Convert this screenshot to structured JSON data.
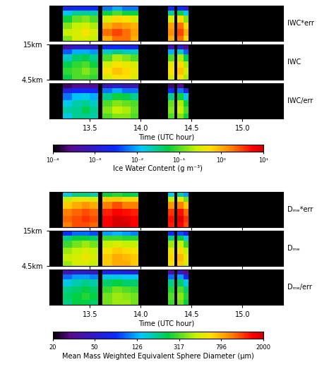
{
  "chart_data": [
    {
      "type": "heatmap",
      "xlabel": "Time (UTC hour)",
      "x_edges": [
        13.1,
        13.23,
        13.32,
        13.42,
        13.5,
        13.58,
        13.62,
        13.72,
        13.82,
        13.9,
        13.98,
        14.27,
        14.33,
        14.36,
        14.42,
        14.47,
        15.4
      ],
      "y_edges": [
        4.5,
        6,
        8,
        10,
        12,
        13.5,
        15
      ],
      "xlim": [
        13.1,
        15.4
      ],
      "xticks": [
        13.5,
        14.0,
        14.5,
        15.0
      ],
      "ylim": [
        4.5,
        15
      ],
      "yticks": [
        {
          "value": 15,
          "label": "15km"
        },
        {
          "value": 4.5,
          "label": "4.5km"
        }
      ],
      "colorbar": {
        "label": "Ice Water Content (g m⁻³)",
        "log": true,
        "range": [
          0.0001,
          10
        ],
        "ticks": [
          {
            "value": 0.0001,
            "label": "10⁻⁴"
          },
          {
            "value": 0.001,
            "label": "10⁻³"
          },
          {
            "value": 0.01,
            "label": "10⁻²"
          },
          {
            "value": 0.1,
            "label": "10⁻¹"
          },
          {
            "value": 1,
            "label": "10⁰"
          },
          {
            "value": 10,
            "label": "10¹"
          }
        ]
      },
      "panels": [
        {
          "title": "IWC*err",
          "tick_labels": false,
          "cells": [
            [
              null,
              0.15,
              0.3,
              0.3,
              0.25,
              null,
              1,
              2,
              2,
              1,
              null,
              1,
              null,
              2,
              0.6,
              null
            ],
            [
              null,
              0.25,
              0.3,
              0.5,
              0.3,
              null,
              2,
              3,
              2,
              1.2,
              null,
              1.5,
              null,
              3,
              1,
              null
            ],
            [
              null,
              0.15,
              0.25,
              0.3,
              0.2,
              null,
              1,
              1.5,
              1.2,
              1,
              null,
              1.2,
              null,
              2,
              0.6,
              null
            ],
            [
              null,
              0.06,
              0.12,
              0.15,
              0.1,
              null,
              0.3,
              0.6,
              0.5,
              0.3,
              null,
              0.3,
              null,
              0.6,
              0.15,
              null
            ],
            [
              null,
              0.015,
              0.03,
              0.03,
              0.025,
              null,
              0.06,
              0.1,
              0.06,
              0.06,
              null,
              0.03,
              null,
              0.06,
              0.015,
              null
            ],
            [
              null,
              0.002,
              0.003,
              0.003,
              0.003,
              null,
              0.006,
              0.01,
              0.006,
              0.006,
              null,
              0.002,
              null,
              0.003,
              0.001,
              null
            ]
          ]
        },
        {
          "title": "IWC",
          "tick_labels": "y",
          "cells": [
            [
              null,
              0.05,
              0.1,
              0.1,
              0.08,
              null,
              0.3,
              0.5,
              0.5,
              0.3,
              null,
              0.3,
              null,
              0.5,
              0.2,
              null
            ],
            [
              null,
              0.08,
              0.1,
              0.15,
              0.1,
              null,
              0.5,
              0.8,
              0.6,
              0.4,
              null,
              0.5,
              null,
              0.8,
              0.3,
              null
            ],
            [
              null,
              0.05,
              0.08,
              0.1,
              0.06,
              null,
              0.3,
              0.5,
              0.4,
              0.3,
              null,
              0.4,
              null,
              0.6,
              0.2,
              null
            ],
            [
              null,
              0.02,
              0.04,
              0.05,
              0.03,
              null,
              0.1,
              0.2,
              0.15,
              0.1,
              null,
              0.1,
              null,
              0.2,
              0.05,
              null
            ],
            [
              null,
              0.005,
              0.01,
              0.01,
              0.008,
              null,
              0.02,
              0.03,
              0.02,
              0.02,
              null,
              0.01,
              null,
              0.02,
              0.005,
              null
            ],
            [
              null,
              0.0005,
              0.001,
              0.001,
              0.001,
              null,
              0.002,
              0.003,
              0.002,
              0.002,
              null,
              0.0005,
              null,
              0.001,
              0.0003,
              null
            ]
          ]
        },
        {
          "title": "IWC/err",
          "tick_labels": "x",
          "cells": [
            [
              null,
              0.015,
              0.03,
              0.03,
              0.025,
              null,
              0.1,
              0.15,
              0.15,
              0.1,
              null,
              0.1,
              null,
              0.15,
              0.06,
              null
            ],
            [
              null,
              0.025,
              0.03,
              0.05,
              0.03,
              null,
              0.15,
              0.25,
              0.2,
              0.12,
              null,
              0.15,
              null,
              0.25,
              0.1,
              null
            ],
            [
              null,
              0.015,
              0.025,
              0.03,
              0.02,
              null,
              0.1,
              0.15,
              0.12,
              0.1,
              null,
              0.12,
              null,
              0.2,
              0.06,
              null
            ],
            [
              null,
              0.006,
              0.012,
              0.015,
              0.01,
              null,
              0.03,
              0.06,
              0.05,
              0.03,
              null,
              0.03,
              null,
              0.06,
              0.015,
              null
            ],
            [
              null,
              0.0015,
              0.003,
              0.003,
              0.0025,
              null,
              0.006,
              0.01,
              0.006,
              0.006,
              null,
              0.003,
              null,
              0.006,
              0.0015,
              null
            ],
            [
              null,
              0.0002,
              0.0003,
              0.0003,
              0.0003,
              null,
              0.0006,
              0.001,
              0.0006,
              0.0006,
              null,
              0.0002,
              null,
              0.0003,
              0.0001,
              null
            ]
          ]
        }
      ]
    },
    {
      "type": "heatmap",
      "xlabel": "Time (UTC hour)",
      "x_edges": [
        13.1,
        13.23,
        13.32,
        13.42,
        13.5,
        13.58,
        13.62,
        13.72,
        13.82,
        13.9,
        13.98,
        14.27,
        14.33,
        14.36,
        14.42,
        14.47,
        15.4
      ],
      "y_edges": [
        4.5,
        6,
        8,
        10,
        12,
        13.5,
        15
      ],
      "xlim": [
        13.1,
        15.4
      ],
      "xticks": [
        13.5,
        14.0,
        14.5,
        15.0
      ],
      "ylim": [
        4.5,
        15
      ],
      "yticks": [
        {
          "value": 15,
          "label": "15km"
        },
        {
          "value": 4.5,
          "label": "4.5km"
        }
      ],
      "colorbar": {
        "label": "Mean Mass Weighted Equivalent Sphere Diameter (µm)",
        "log": true,
        "range": [
          20,
          2000
        ],
        "ticks": [
          20,
          50,
          126,
          317,
          796,
          2000
        ]
      },
      "panels": [
        {
          "title": "Dₘₑ*err",
          "tick_labels": false,
          "cells": [
            [
              null,
              1000,
              1200,
              1200,
              1100,
              null,
              1600,
              1900,
              1900,
              1600,
              null,
              1400,
              null,
              1600,
              1200,
              null
            ],
            [
              null,
              1100,
              1200,
              1300,
              1200,
              null,
              1600,
              1900,
              1800,
              1600,
              null,
              1500,
              null,
              1800,
              1300,
              null
            ],
            [
              null,
              1000,
              1100,
              1200,
              1100,
              null,
              1400,
              1600,
              1500,
              1400,
              null,
              1300,
              null,
              1500,
              1100,
              null
            ],
            [
              null,
              700,
              800,
              900,
              800,
              null,
              1000,
              1200,
              1000,
              1000,
              null,
              900,
              null,
              1000,
              700,
              null
            ],
            [
              null,
              450,
              550,
              550,
              500,
              null,
              700,
              700,
              650,
              650,
              null,
              450,
              null,
              550,
              350,
              null
            ],
            [
              null,
              150,
              200,
              200,
              180,
              null,
              250,
              280,
              250,
              230,
              null,
              150,
              null,
              180,
              120,
              null
            ]
          ]
        },
        {
          "title": "Dₘₑ",
          "tick_labels": "y",
          "cells": [
            [
              null,
              400,
              500,
              500,
              450,
              null,
              700,
              800,
              800,
              700,
              null,
              600,
              null,
              700,
              500,
              null
            ],
            [
              null,
              450,
              500,
              550,
              500,
              null,
              700,
              800,
              750,
              700,
              null,
              650,
              null,
              750,
              550,
              null
            ],
            [
              null,
              400,
              450,
              500,
              450,
              null,
              600,
              700,
              650,
              600,
              null,
              550,
              null,
              650,
              450,
              null
            ],
            [
              null,
              300,
              350,
              400,
              350,
              null,
              450,
              500,
              450,
              450,
              null,
              400,
              null,
              450,
              300,
              null
            ],
            [
              null,
              200,
              250,
              250,
              220,
              null,
              300,
              300,
              280,
              280,
              null,
              200,
              null,
              250,
              150,
              null
            ],
            [
              null,
              80,
              100,
              100,
              90,
              null,
              120,
              130,
              120,
              110,
              null,
              70,
              null,
              90,
              60,
              null
            ]
          ]
        },
        {
          "title": "Dₘₑ/err",
          "tick_labels": "x",
          "cells": [
            [
              null,
              200,
              250,
              250,
              220,
              null,
              350,
              400,
              400,
              350,
              null,
              300,
              null,
              350,
              250,
              null
            ],
            [
              null,
              220,
              250,
              280,
              250,
              null,
              350,
              400,
              380,
              350,
              null,
              320,
              null,
              380,
              280,
              null
            ],
            [
              null,
              200,
              220,
              250,
              220,
              null,
              300,
              350,
              320,
              300,
              null,
              280,
              null,
              320,
              220,
              null
            ],
            [
              null,
              150,
              180,
              200,
              180,
              null,
              220,
              250,
              220,
              220,
              null,
              200,
              null,
              220,
              150,
              null
            ],
            [
              null,
              100,
              120,
              120,
              110,
              null,
              150,
              150,
              140,
              140,
              null,
              100,
              null,
              120,
              75,
              null
            ],
            [
              null,
              40,
              50,
              50,
              45,
              null,
              60,
              65,
              60,
              55,
              null,
              35,
              null,
              45,
              30,
              null
            ]
          ]
        }
      ]
    }
  ]
}
